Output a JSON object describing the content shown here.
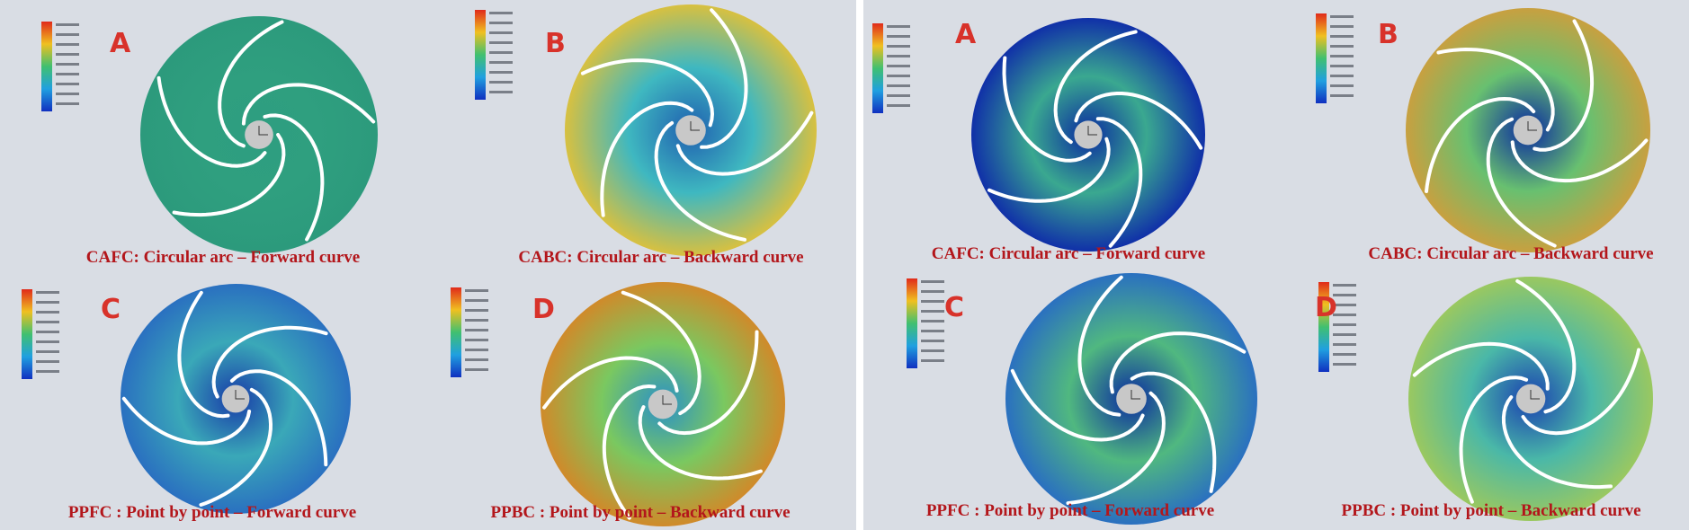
{
  "panels": [
    {
      "letter": "A",
      "caption": "CAFC: Circular arc – Forward curve"
    },
    {
      "letter": "B",
      "caption": "CABC: Circular arc – Backward curve"
    },
    {
      "letter": "C",
      "caption": "PPFC : Point by point – Forward curve"
    },
    {
      "letter": "D",
      "caption": "PPBC : Point by point – Backward curve"
    },
    {
      "letter": "A",
      "caption": "CAFC: Circular arc – Forward curve"
    },
    {
      "letter": "B",
      "caption": "CABC: Circular arc – Backward curve"
    },
    {
      "letter": "C",
      "caption": "PPFC : Point by point – Forward curve"
    },
    {
      "letter": "D",
      "caption": "PPBC : Point by point – Backward curve"
    }
  ]
}
